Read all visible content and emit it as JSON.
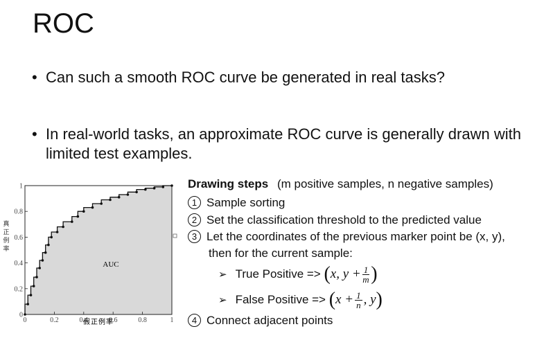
{
  "slide": {
    "title": "ROC",
    "bullets": [
      "Can such a smooth ROC curve be generated in real tasks?",
      "In real-world tasks, an approximate ROC curve is generally drawn with limited test examples."
    ],
    "bullet_symbol": "•"
  },
  "chart_data": {
    "type": "line",
    "fill": "area-under-curve",
    "fill_color": "#d9d9d9",
    "annotation": "AUC",
    "xlabel": "假正例率",
    "ylabel": "真正例率",
    "xlim": [
      0,
      1
    ],
    "ylim": [
      0,
      1
    ],
    "x_ticks": [
      "0",
      "0.2",
      "0.4",
      "0.6",
      "0.8",
      "1"
    ],
    "y_ticks": [
      "0",
      "0.2",
      "0.4",
      "0.6",
      "0.8",
      "1"
    ],
    "series": [
      {
        "x": [
          0,
          0,
          0.02,
          0.02,
          0.04,
          0.04,
          0.06,
          0.06,
          0.08,
          0.08,
          0.1,
          0.1,
          0.12,
          0.12,
          0.14,
          0.14,
          0.16,
          0.16,
          0.18,
          0.18,
          0.22,
          0.22,
          0.26,
          0.26,
          0.32,
          0.32,
          0.36,
          0.36,
          0.4,
          0.4,
          0.46,
          0.46,
          0.52,
          0.52,
          0.58,
          0.58,
          0.64,
          0.64,
          0.7,
          0.7,
          0.76,
          0.76,
          0.82,
          0.82,
          0.88,
          0.88,
          0.94,
          0.94,
          1
        ],
        "y": [
          0,
          0.08,
          0.08,
          0.15,
          0.15,
          0.22,
          0.22,
          0.29,
          0.29,
          0.36,
          0.36,
          0.42,
          0.42,
          0.48,
          0.48,
          0.54,
          0.54,
          0.6,
          0.6,
          0.64,
          0.64,
          0.68,
          0.68,
          0.72,
          0.72,
          0.76,
          0.76,
          0.8,
          0.8,
          0.83,
          0.83,
          0.86,
          0.86,
          0.89,
          0.89,
          0.91,
          0.91,
          0.93,
          0.93,
          0.95,
          0.95,
          0.97,
          0.97,
          0.98,
          0.98,
          0.99,
          0.99,
          1,
          1
        ]
      }
    ]
  },
  "steps": {
    "title": "Drawing steps",
    "title_paren": "(m positive samples, n negative samples)",
    "items": [
      {
        "num": "1",
        "text": "Sample sorting"
      },
      {
        "num": "2",
        "text": "Set the classification threshold to the predicted value"
      },
      {
        "num": "3",
        "text": "Let the coordinates of the previous marker point be (x, y),"
      },
      {
        "num": "4",
        "text": "Connect adjacent points"
      }
    ],
    "item3_cont": "then for the current sample:",
    "tp_label": "True Positive =>",
    "tp_expr": "x, y +",
    "tp_frac_num": "1",
    "tp_frac_den": "m",
    "fp_label": "False Positive =>",
    "fp_expr_pre": "x +",
    "fp_frac_num": "1",
    "fp_frac_den": "n",
    "fp_expr_post": ", y"
  }
}
